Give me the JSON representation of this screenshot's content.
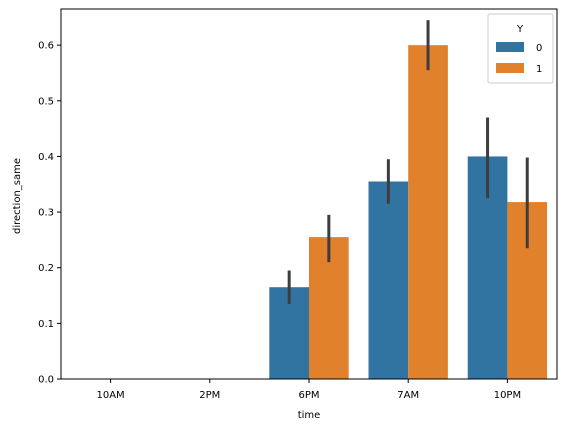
{
  "chart_data": {
    "type": "bar",
    "xlabel": "time",
    "ylabel": "direction_same",
    "categories": [
      "10AM",
      "2PM",
      "6PM",
      "7AM",
      "10PM"
    ],
    "ylim": [
      0,
      0.665
    ],
    "yticks": [
      "0.0",
      "0.1",
      "0.2",
      "0.3",
      "0.4",
      "0.5",
      "0.6"
    ],
    "legend": {
      "title": "Y",
      "placement": "top-right"
    },
    "series": [
      {
        "name": "0",
        "color": "#3274a1",
        "values": [
          0.0,
          0.0,
          0.165,
          0.355,
          0.4
        ],
        "error_low": [
          0.0,
          0.0,
          0.135,
          0.315,
          0.325
        ],
        "error_high": [
          0.0,
          0.0,
          0.195,
          0.395,
          0.47
        ]
      },
      {
        "name": "1",
        "color": "#e1812c",
        "values": [
          0.0,
          0.0,
          0.255,
          0.6,
          0.318
        ],
        "error_low": [
          0.0,
          0.0,
          0.21,
          0.555,
          0.235
        ],
        "error_high": [
          0.0,
          0.0,
          0.295,
          0.645,
          0.398
        ]
      }
    ],
    "error_bar_color": "#3d3d3d"
  }
}
